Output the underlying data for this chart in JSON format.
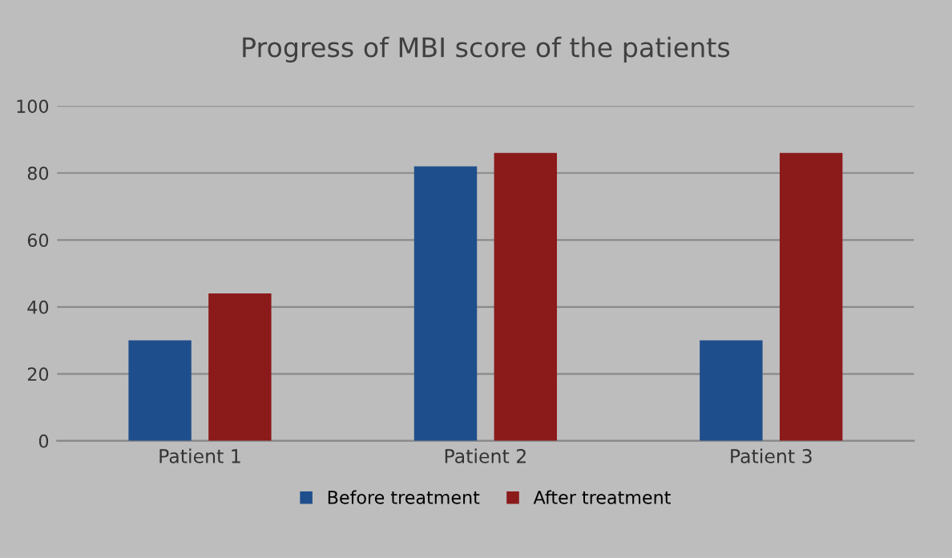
{
  "chart_data": {
    "type": "bar",
    "title": "Progress of MBI score of the patients",
    "categories": [
      "Patient 1",
      "Patient 2",
      "Patient 3"
    ],
    "series": [
      {
        "name": "Before treatment",
        "color": "#1f4e8c",
        "values": [
          30,
          82,
          30
        ]
      },
      {
        "name": "After treatment",
        "color": "#8b1a1a",
        "values": [
          44,
          86,
          86
        ]
      }
    ],
    "ylim": [
      0,
      100
    ],
    "yticks": [
      0,
      20,
      40,
      60,
      80,
      100
    ],
    "grid": "y",
    "legend": "bottom"
  }
}
